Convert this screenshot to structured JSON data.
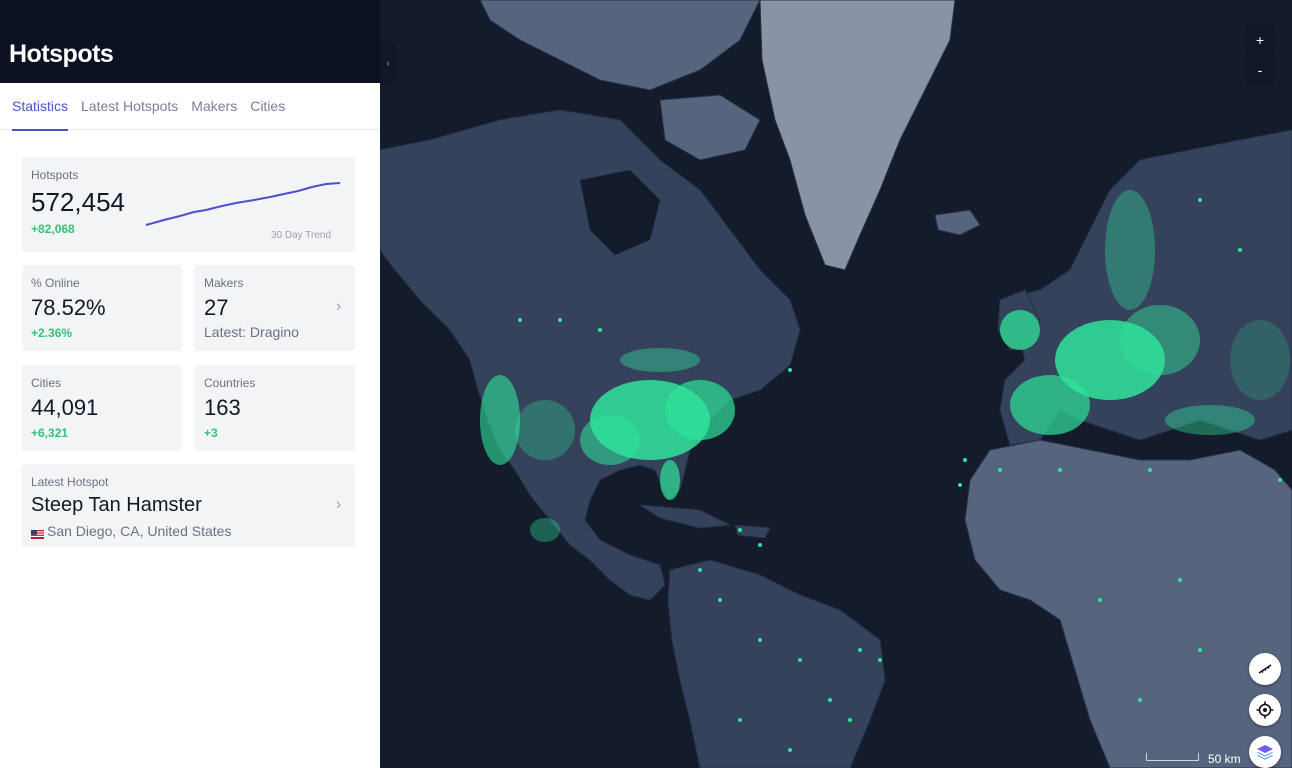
{
  "panel": {
    "title": "Hotspots",
    "tabs": [
      {
        "label": "Statistics",
        "active": true
      },
      {
        "label": "Latest Hotspots",
        "active": false
      },
      {
        "label": "Makers",
        "active": false
      },
      {
        "label": "Cities",
        "active": false
      }
    ]
  },
  "stats": {
    "hotspots": {
      "label": "Hotspots",
      "value": "572,454",
      "change": "+82,068",
      "trend_label": "30 Day Trend"
    },
    "online": {
      "label": "% Online",
      "value": "78.52%",
      "change": "+2.36%"
    },
    "makers": {
      "label": "Makers",
      "value": "27",
      "sub": "Latest: Dragino"
    },
    "cities": {
      "label": "Cities",
      "value": "44,091",
      "change": "+6,321"
    },
    "countries": {
      "label": "Countries",
      "value": "163",
      "change": "+3"
    },
    "latest": {
      "label": "Latest Hotspot",
      "name": "Steep Tan Hamster",
      "location": "San Diego, CA, United States"
    }
  },
  "map": {
    "zoom_in_label": "+",
    "zoom_out_label": "-",
    "collapse_label": "‹",
    "scale_label": "50 km",
    "colors": {
      "hotspot": "#2fe39a",
      "accent": "#4b52cc",
      "land": "#35425c",
      "water": "#141c2c"
    }
  }
}
